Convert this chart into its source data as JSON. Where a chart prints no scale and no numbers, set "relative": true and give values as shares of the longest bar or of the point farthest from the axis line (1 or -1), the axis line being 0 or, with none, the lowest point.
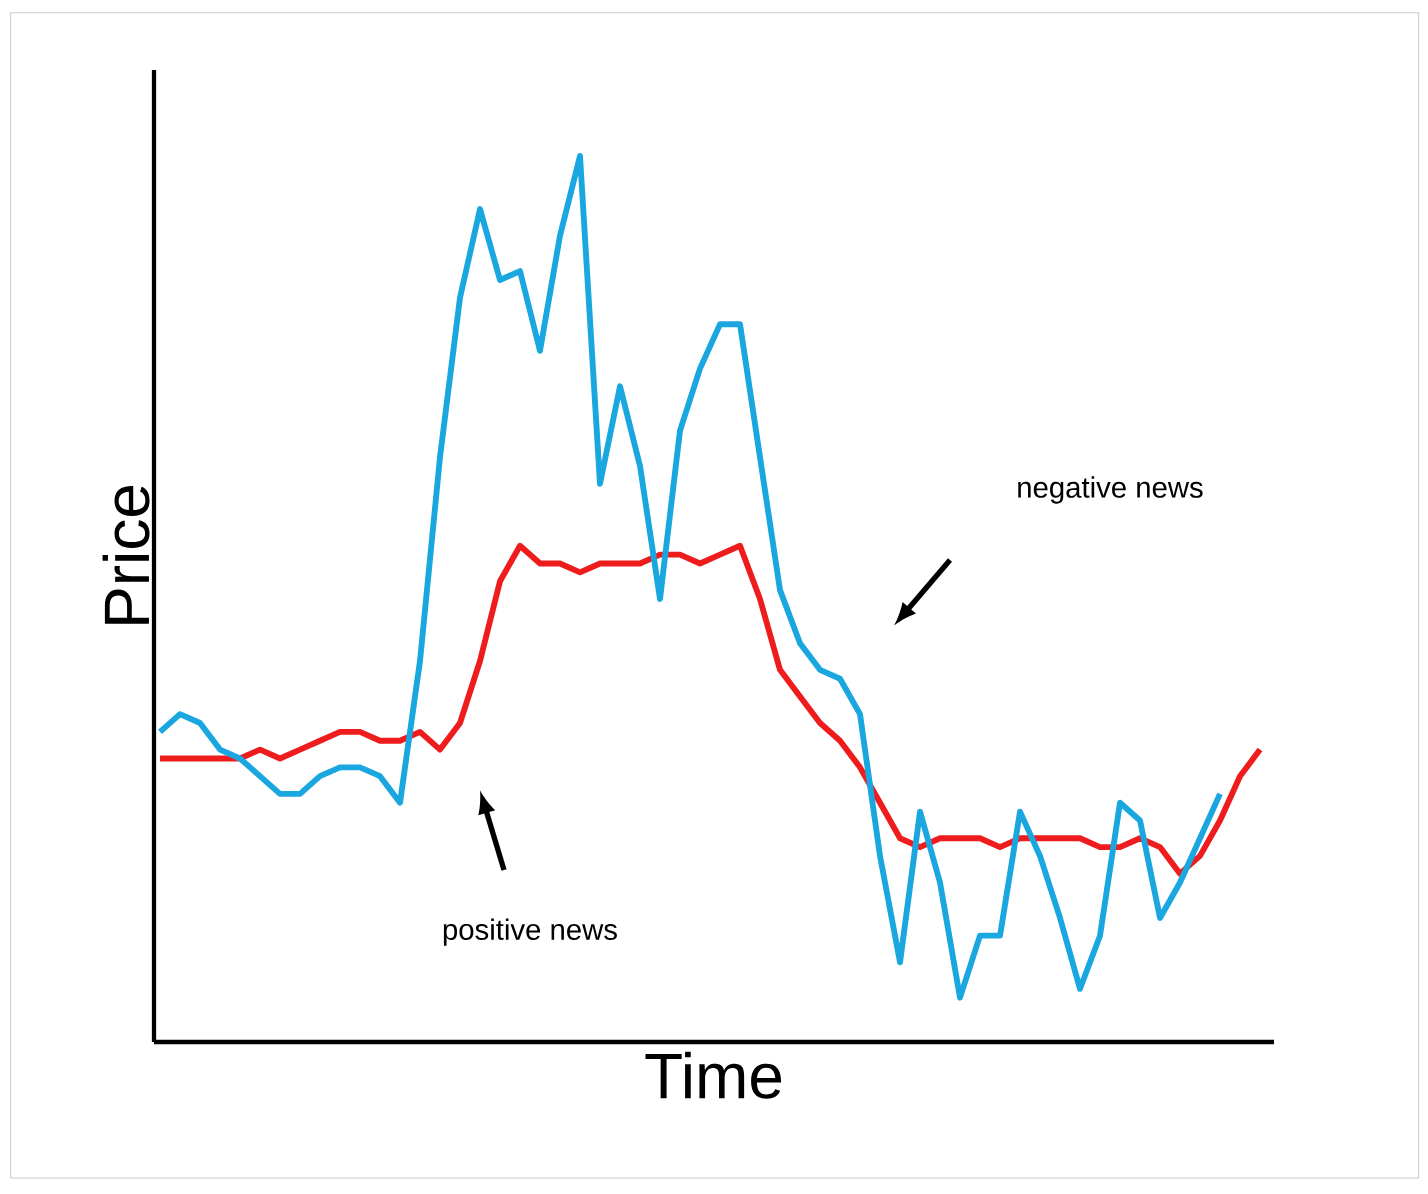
{
  "chart_data": {
    "type": "line",
    "xlabel": "Time",
    "ylabel": "Price",
    "relative": true,
    "categories": [
      null,
      null,
      null,
      null,
      null,
      null,
      null,
      null,
      null,
      null,
      null,
      null,
      null,
      null,
      null,
      null,
      null,
      null,
      null,
      null,
      null,
      null,
      null,
      null,
      null,
      null,
      null,
      null,
      null,
      null,
      null,
      null,
      null,
      null,
      null,
      null,
      null,
      null,
      null,
      null,
      null,
      null,
      null,
      null,
      null,
      null,
      null,
      null,
      null,
      null,
      null,
      null,
      null,
      null,
      null,
      null
    ],
    "series": [
      {
        "color": "#ee1c1c",
        "values": [
          0.32,
          0.32,
          0.32,
          0.32,
          0.32,
          0.33,
          0.32,
          0.33,
          0.34,
          0.35,
          0.35,
          0.34,
          0.34,
          0.35,
          0.33,
          0.36,
          0.43,
          0.52,
          0.56,
          0.54,
          0.54,
          0.53,
          0.54,
          0.54,
          0.54,
          0.55,
          0.55,
          0.54,
          0.55,
          0.56,
          0.5,
          0.42,
          0.39,
          0.36,
          0.34,
          0.31,
          0.27,
          0.23,
          0.22,
          0.23,
          0.23,
          0.23,
          0.22,
          0.23,
          0.23,
          0.23,
          0.23,
          0.22,
          0.22,
          0.23,
          0.22,
          0.19,
          0.21,
          0.25,
          0.3,
          0.33
        ]
      },
      {
        "color": "#1aa7e0",
        "values": [
          0.35,
          0.37,
          0.36,
          0.33,
          0.32,
          0.3,
          0.28,
          0.28,
          0.3,
          0.31,
          0.31,
          0.3,
          0.27,
          0.43,
          0.66,
          0.84,
          0.94,
          0.86,
          0.87,
          0.78,
          0.91,
          1,
          0.63,
          0.74,
          0.65,
          0.5,
          0.69,
          0.76,
          0.81,
          0.81,
          0.66,
          0.51,
          0.45,
          0.42,
          0.41,
          0.37,
          0.21,
          0.09,
          0.26,
          0.18,
          0.05,
          0.12,
          0.12,
          0.26,
          0.21,
          0.14,
          0.06,
          0.12,
          0.27,
          0.25,
          0.14,
          0.18,
          0.23,
          0.28,
          null,
          null
        ]
      }
    ],
    "annotations": [
      "negative news",
      "positive news"
    ]
  }
}
